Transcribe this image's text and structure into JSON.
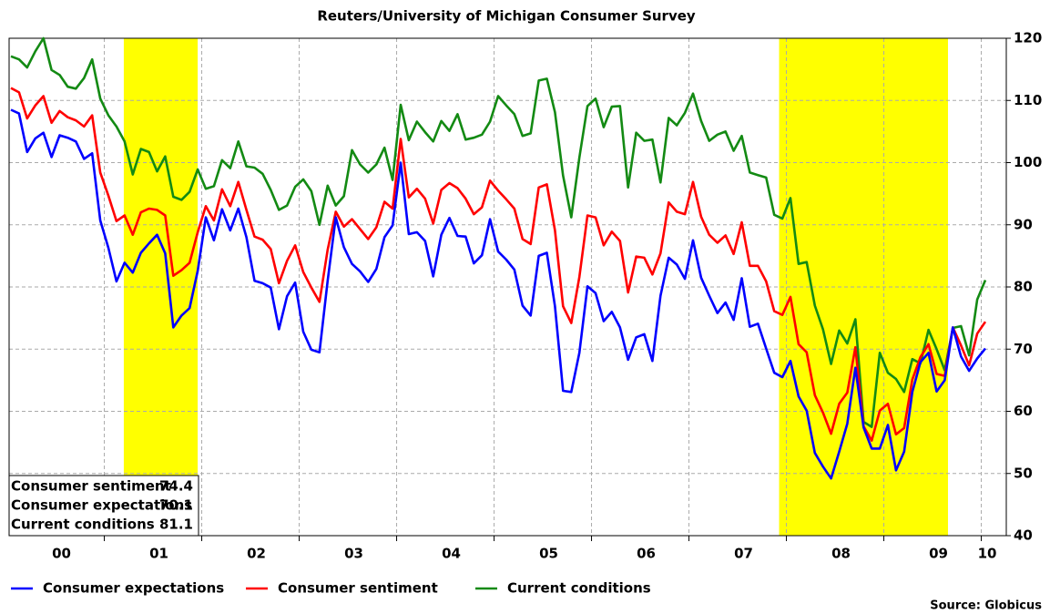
{
  "chart_data": {
    "type": "line",
    "title": "Reuters/University of Michigan Consumer Survey",
    "source": "Source: Globicus",
    "categories": [
      null,
      null,
      null,
      null,
      null,
      null,
      "00",
      null,
      null,
      null,
      null,
      null,
      null,
      null,
      null,
      null,
      null,
      null,
      "01",
      null,
      null,
      null,
      null,
      null,
      null,
      null,
      null,
      null,
      null,
      null,
      "02",
      null,
      null,
      null,
      null,
      null,
      null,
      null,
      null,
      null,
      null,
      null,
      "03",
      null,
      null,
      null,
      null,
      null,
      null,
      null,
      null,
      null,
      null,
      null,
      "04",
      null,
      null,
      null,
      null,
      null,
      null,
      null,
      null,
      null,
      null,
      null,
      "05",
      null,
      null,
      null,
      null,
      null,
      null,
      null,
      null,
      null,
      null,
      null,
      "06",
      null,
      null,
      null,
      null,
      null,
      null,
      null,
      null,
      null,
      null,
      null,
      "07",
      null,
      null,
      null,
      null,
      null,
      null,
      null,
      null,
      null,
      null,
      null,
      "08",
      null,
      null,
      null,
      null,
      null,
      null,
      null,
      null,
      null,
      null,
      null,
      "09",
      null,
      null,
      null,
      null,
      null,
      "10"
    ],
    "series": [
      {
        "name": "Consumer expectations",
        "color": "#0000ff",
        "values": [
          108.5,
          107.9,
          101.7,
          103.9,
          104.8,
          100.9,
          104.4,
          104.0,
          103.4,
          100.6,
          101.5,
          90.7,
          86.3,
          80.9,
          83.9,
          82.3,
          85.5,
          87.0,
          88.4,
          85.4,
          73.5,
          75.4,
          76.6,
          82.6,
          91.2,
          87.5,
          92.5,
          89.1,
          92.6,
          88.0,
          81.0,
          80.6,
          79.9,
          73.2,
          78.5,
          80.7,
          72.8,
          69.9,
          69.5,
          81.0,
          91.2,
          86.4,
          83.7,
          82.5,
          80.8,
          82.9,
          88.0,
          89.9,
          100.0,
          88.5,
          88.8,
          87.4,
          81.7,
          88.4,
          91.1,
          88.2,
          88.1,
          83.8,
          85.1,
          90.9,
          85.7,
          84.4,
          82.8,
          77.0,
          75.4,
          85.0,
          85.5,
          76.9,
          63.3,
          63.1,
          69.4,
          80.1,
          79.0,
          74.5,
          76.0,
          73.5,
          68.3,
          71.9,
          72.4,
          68.1,
          78.6,
          84.7,
          83.6,
          81.3,
          87.5,
          81.5,
          78.6,
          75.8,
          77.5,
          74.7,
          81.4,
          73.6,
          74.1,
          70.1,
          66.2,
          65.5,
          68.1,
          62.4,
          60.1,
          53.3,
          51.1,
          49.2,
          53.5,
          58.0,
          67.0,
          57.4,
          54.0,
          54.0,
          57.8,
          50.5,
          53.5,
          63.1,
          67.9,
          69.4,
          63.2,
          65.0,
          73.5,
          68.8,
          66.5,
          68.5,
          70.1
        ]
      },
      {
        "name": "Consumer sentiment",
        "color": "#ff0000",
        "values": [
          112.0,
          111.3,
          107.1,
          109.2,
          110.7,
          106.4,
          108.3,
          107.3,
          106.8,
          105.8,
          107.6,
          98.4,
          94.7,
          90.6,
          91.5,
          88.4,
          92.0,
          92.6,
          92.4,
          91.5,
          81.8,
          82.7,
          83.9,
          88.8,
          93.0,
          90.7,
          95.7,
          93.0,
          96.9,
          92.4,
          88.1,
          87.6,
          86.1,
          80.6,
          84.2,
          86.7,
          82.4,
          79.9,
          77.6,
          86.0,
          92.1,
          89.7,
          90.9,
          89.3,
          87.7,
          89.6,
          93.7,
          92.6,
          103.8,
          94.4,
          95.8,
          94.2,
          90.2,
          95.6,
          96.7,
          95.9,
          94.2,
          91.7,
          92.8,
          97.1,
          95.5,
          94.1,
          92.6,
          87.7,
          86.9,
          96.0,
          96.5,
          89.1,
          76.9,
          74.2,
          81.6,
          91.5,
          91.2,
          86.7,
          88.9,
          87.4,
          79.1,
          84.9,
          84.7,
          82.0,
          85.4,
          93.6,
          92.1,
          91.7,
          96.9,
          91.3,
          88.4,
          87.1,
          88.3,
          85.3,
          90.4,
          83.4,
          83.4,
          80.9,
          76.1,
          75.5,
          78.4,
          70.8,
          69.5,
          62.6,
          59.8,
          56.4,
          61.2,
          63.0,
          70.3,
          57.6,
          55.3,
          60.1,
          61.2,
          56.3,
          57.3,
          65.1,
          68.7,
          70.8,
          66.0,
          65.7,
          73.5,
          70.6,
          67.4,
          72.5,
          74.4
        ]
      },
      {
        "name": "Current conditions",
        "color": "#138a13",
        "values": [
          117.1,
          116.6,
          115.3,
          117.9,
          120.0,
          114.9,
          114.1,
          112.2,
          111.9,
          113.6,
          116.6,
          110.3,
          107.6,
          105.8,
          103.4,
          98.1,
          102.2,
          101.7,
          98.6,
          101.0,
          94.5,
          94.0,
          95.3,
          98.9,
          95.8,
          96.2,
          100.4,
          99.1,
          103.4,
          99.4,
          99.2,
          98.2,
          95.6,
          92.4,
          93.1,
          96.1,
          97.3,
          95.4,
          90.0,
          96.3,
          93.1,
          94.6,
          102.0,
          99.7,
          98.4,
          99.7,
          102.4,
          97.2,
          109.3,
          103.6,
          106.6,
          104.9,
          103.4,
          106.7,
          105.1,
          107.8,
          103.7,
          104.0,
          104.5,
          106.6,
          110.7,
          109.2,
          107.8,
          104.3,
          104.7,
          113.2,
          113.5,
          108.1,
          97.9,
          91.2,
          100.8,
          109.1,
          110.3,
          105.7,
          109.0,
          109.1,
          96.0,
          104.8,
          103.5,
          103.7,
          96.8,
          107.2,
          106.0,
          108.0,
          111.1,
          106.7,
          103.5,
          104.5,
          105.0,
          101.9,
          104.3,
          98.4,
          98.0,
          97.6,
          91.6,
          91.0,
          94.3,
          83.7,
          84.0,
          77.0,
          73.2,
          67.6,
          73.0,
          70.9,
          74.8,
          58.3,
          57.5,
          69.4,
          66.2,
          65.2,
          63.1,
          68.4,
          67.7,
          73.1,
          70.0,
          66.6,
          73.4,
          73.7,
          69.0,
          78.0,
          81.1
        ]
      }
    ],
    "summary": [
      {
        "label": "Consumer sentiment",
        "value": 74.4
      },
      {
        "label": "Consumer expectations",
        "value": 70.1
      },
      {
        "label": "Current conditions",
        "value": 81.1
      }
    ],
    "shading_color": "#ffff00",
    "ylim": [
      40,
      120
    ],
    "yticks": [
      40,
      50,
      60,
      70,
      80,
      90,
      100,
      110,
      120
    ],
    "y_axis_side": "right",
    "grid": true,
    "legend": "bottom"
  }
}
